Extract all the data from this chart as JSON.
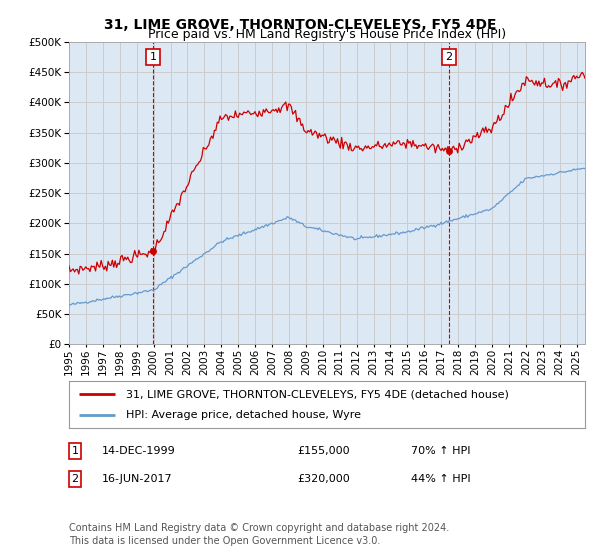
{
  "title": "31, LIME GROVE, THORNTON-CLEVELEYS, FY5 4DE",
  "subtitle": "Price paid vs. HM Land Registry's House Price Index (HPI)",
  "ytick_values": [
    0,
    50000,
    100000,
    150000,
    200000,
    250000,
    300000,
    350000,
    400000,
    450000,
    500000
  ],
  "ylim": [
    0,
    500000
  ],
  "xlim_start": 1995.0,
  "xlim_end": 2025.5,
  "sale1_x": 1999.96,
  "sale1_y": 155000,
  "sale1_label": "1",
  "sale2_x": 2017.46,
  "sale2_y": 320000,
  "sale2_label": "2",
  "red_line_color": "#cc0000",
  "blue_line_color": "#6699cc",
  "vline_color": "#cc0000",
  "grid_color": "#cccccc",
  "plot_bg_color": "#dde8f5",
  "background_color": "#ffffff",
  "legend_line1": "31, LIME GROVE, THORNTON-CLEVELEYS, FY5 4DE (detached house)",
  "legend_line2": "HPI: Average price, detached house, Wyre",
  "annotation1_box": "1",
  "annotation1_date": "14-DEC-1999",
  "annotation1_price": "£155,000",
  "annotation1_hpi": "70% ↑ HPI",
  "annotation2_box": "2",
  "annotation2_date": "16-JUN-2017",
  "annotation2_price": "£320,000",
  "annotation2_hpi": "44% ↑ HPI",
  "footnote": "Contains HM Land Registry data © Crown copyright and database right 2024.\nThis data is licensed under the Open Government Licence v3.0.",
  "title_fontsize": 10,
  "subtitle_fontsize": 9,
  "tick_fontsize": 7.5,
  "legend_fontsize": 8,
  "annotation_fontsize": 8,
  "footnote_fontsize": 7
}
